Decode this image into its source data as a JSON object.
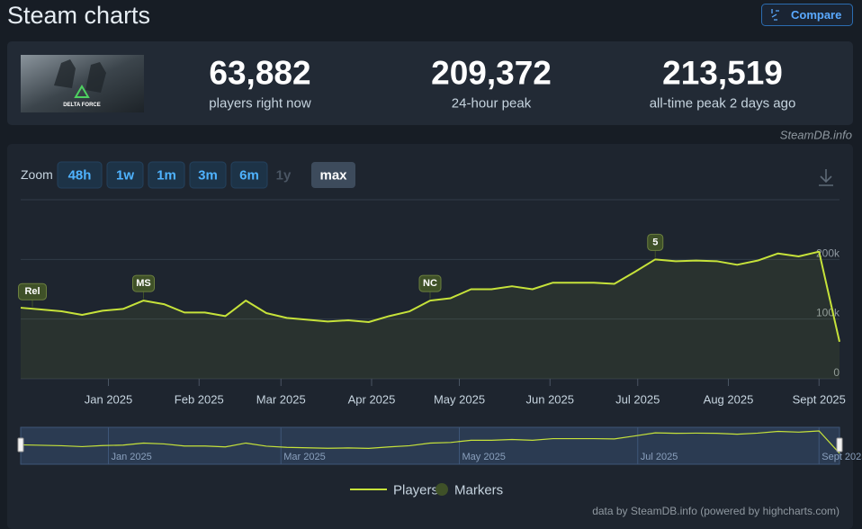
{
  "header": {
    "title": "Steam charts",
    "compare_button": "Compare"
  },
  "game": {
    "image_caption": "DELTA FORCE"
  },
  "stats": [
    {
      "value": "63,882",
      "label": "players right now"
    },
    {
      "value": "209,372",
      "label": "24-hour peak"
    },
    {
      "value": "213,519",
      "label": "all-time peak 2 days ago"
    }
  ],
  "source_label": "SteamDB.info",
  "zoom": {
    "label": "Zoom",
    "options": [
      "48h",
      "1w",
      "1m",
      "3m",
      "6m",
      "1y",
      "max"
    ],
    "active": "max",
    "disabled": [
      "1y"
    ]
  },
  "chart_data": {
    "type": "line",
    "x": [
      "2024-12-02",
      "2024-12-09",
      "2024-12-16",
      "2024-12-23",
      "2024-12-30",
      "2025-01-06",
      "2025-01-13",
      "2025-01-20",
      "2025-01-27",
      "2025-02-03",
      "2025-02-10",
      "2025-02-17",
      "2025-02-24",
      "2025-03-03",
      "2025-03-10",
      "2025-03-17",
      "2025-03-24",
      "2025-03-31",
      "2025-04-07",
      "2025-04-14",
      "2025-04-21",
      "2025-04-28",
      "2025-05-05",
      "2025-05-12",
      "2025-05-19",
      "2025-05-26",
      "2025-06-02",
      "2025-06-09",
      "2025-06-16",
      "2025-06-23",
      "2025-06-30",
      "2025-07-07",
      "2025-07-14",
      "2025-07-21",
      "2025-07-28",
      "2025-08-04",
      "2025-08-11",
      "2025-08-18",
      "2025-08-25",
      "2025-09-01",
      "2025-09-08"
    ],
    "series": [
      {
        "name": "Players",
        "color": "#c6e23a",
        "values": [
          119000,
          116000,
          113000,
          107000,
          114000,
          117000,
          131000,
          125000,
          111000,
          111000,
          105000,
          131000,
          110000,
          102000,
          99000,
          96000,
          98000,
          95000,
          105000,
          113000,
          131000,
          135000,
          150000,
          150000,
          155000,
          150000,
          161000,
          161000,
          161000,
          159000,
          179000,
          200000,
          197000,
          198000,
          197000,
          191000,
          198000,
          210000,
          205000,
          213000,
          62000
        ]
      }
    ],
    "markers_legend": "Markers",
    "marker_color": "#3f5128",
    "markers": [
      {
        "label": "Rel",
        "x": "2024-12-06"
      },
      {
        "label": "MS",
        "x": "2025-01-13"
      },
      {
        "label": "NC",
        "x": "2025-04-21"
      },
      {
        "label": "5",
        "x": "2025-07-07"
      }
    ],
    "xlim": [
      "2024-12-02",
      "2025-09-08"
    ],
    "xticks": [
      {
        "value": "2025-01-01",
        "label": "Jan 2025"
      },
      {
        "value": "2025-02-01",
        "label": "Feb 2025"
      },
      {
        "value": "2025-03-01",
        "label": "Mar 2025"
      },
      {
        "value": "2025-04-01",
        "label": "Apr 2025"
      },
      {
        "value": "2025-05-01",
        "label": "May 2025"
      },
      {
        "value": "2025-06-01",
        "label": "Jun 2025"
      },
      {
        "value": "2025-07-01",
        "label": "Jul 2025"
      },
      {
        "value": "2025-08-01",
        "label": "Aug 2025"
      },
      {
        "value": "2025-09-01",
        "label": "Sept 2025"
      }
    ],
    "ylim": [
      0,
      300000
    ],
    "yticks": [
      0,
      {
        "value": 100000,
        "label": "100k"
      },
      {
        "value": 200000,
        "label": "200k"
      }
    ],
    "grid": true,
    "credits": "data by SteamDB.info (powered by highcharts.com)"
  }
}
